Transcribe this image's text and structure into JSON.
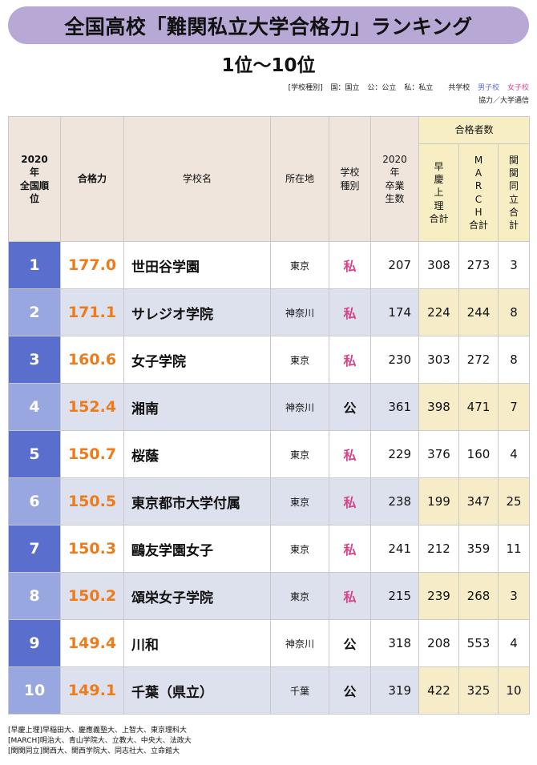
{
  "title": "全国高校「難関私立大学合格力」ランキング",
  "subtitle": "1位〜10位",
  "legend": {
    "type_label": "[学校種別]",
    "koku": "国：国立",
    "ko": "公：公立",
    "shi": "私：私立",
    "coed": "共学校",
    "boys": "男子校",
    "girls": "女子校",
    "credit": "協力／大学通信"
  },
  "headers": {
    "rank": "2020年全国順位",
    "score": "合格力",
    "school": "学校名",
    "location": "所在地",
    "type": "学校種別",
    "grads": "2020年卒業生数",
    "passers_group": "合格者数",
    "soukei": "早慶上理合計",
    "march": "MARCH合計",
    "kankan": "関関同立合計"
  },
  "rows": [
    {
      "rank": "1",
      "score": "177.0",
      "school": "世田谷学園",
      "location": "東京",
      "type": "私",
      "grads": "207",
      "soukei": "308",
      "march": "273",
      "kankan": "3"
    },
    {
      "rank": "2",
      "score": "171.1",
      "school": "サレジオ学院",
      "location": "神奈川",
      "type": "私",
      "grads": "174",
      "soukei": "224",
      "march": "244",
      "kankan": "8"
    },
    {
      "rank": "3",
      "score": "160.6",
      "school": "女子学院",
      "location": "東京",
      "type": "私",
      "grads": "230",
      "soukei": "303",
      "march": "272",
      "kankan": "8"
    },
    {
      "rank": "4",
      "score": "152.4",
      "school": "湘南",
      "location": "神奈川",
      "type": "公",
      "grads": "361",
      "soukei": "398",
      "march": "471",
      "kankan": "7"
    },
    {
      "rank": "5",
      "score": "150.7",
      "school": "桜蔭",
      "location": "東京",
      "type": "私",
      "grads": "229",
      "soukei": "376",
      "march": "160",
      "kankan": "4"
    },
    {
      "rank": "6",
      "score": "150.5",
      "school": "東京都市大学付属",
      "location": "東京",
      "type": "私",
      "grads": "238",
      "soukei": "199",
      "march": "347",
      "kankan": "25"
    },
    {
      "rank": "7",
      "score": "150.3",
      "school": "鷗友学園女子",
      "location": "東京",
      "type": "私",
      "grads": "241",
      "soukei": "212",
      "march": "359",
      "kankan": "11"
    },
    {
      "rank": "8",
      "score": "150.2",
      "school": "頌栄女子学院",
      "location": "東京",
      "type": "私",
      "grads": "215",
      "soukei": "239",
      "march": "268",
      "kankan": "3"
    },
    {
      "rank": "9",
      "score": "149.4",
      "school": "川和",
      "location": "神奈川",
      "type": "公",
      "grads": "318",
      "soukei": "208",
      "march": "553",
      "kankan": "4"
    },
    {
      "rank": "10",
      "score": "149.1",
      "school": "千葉（県立）",
      "location": "千葉",
      "type": "公",
      "grads": "319",
      "soukei": "422",
      "march": "325",
      "kankan": "10"
    }
  ],
  "notes": [
    "[早慶上理]早稲田大、慶應義塾大、上智大、東京理科大",
    "[MARCH]明治大、青山学院大、立教大、中央大、法政大",
    "[関関同立]関西大、関西学院大、同志社大、立命館大"
  ]
}
